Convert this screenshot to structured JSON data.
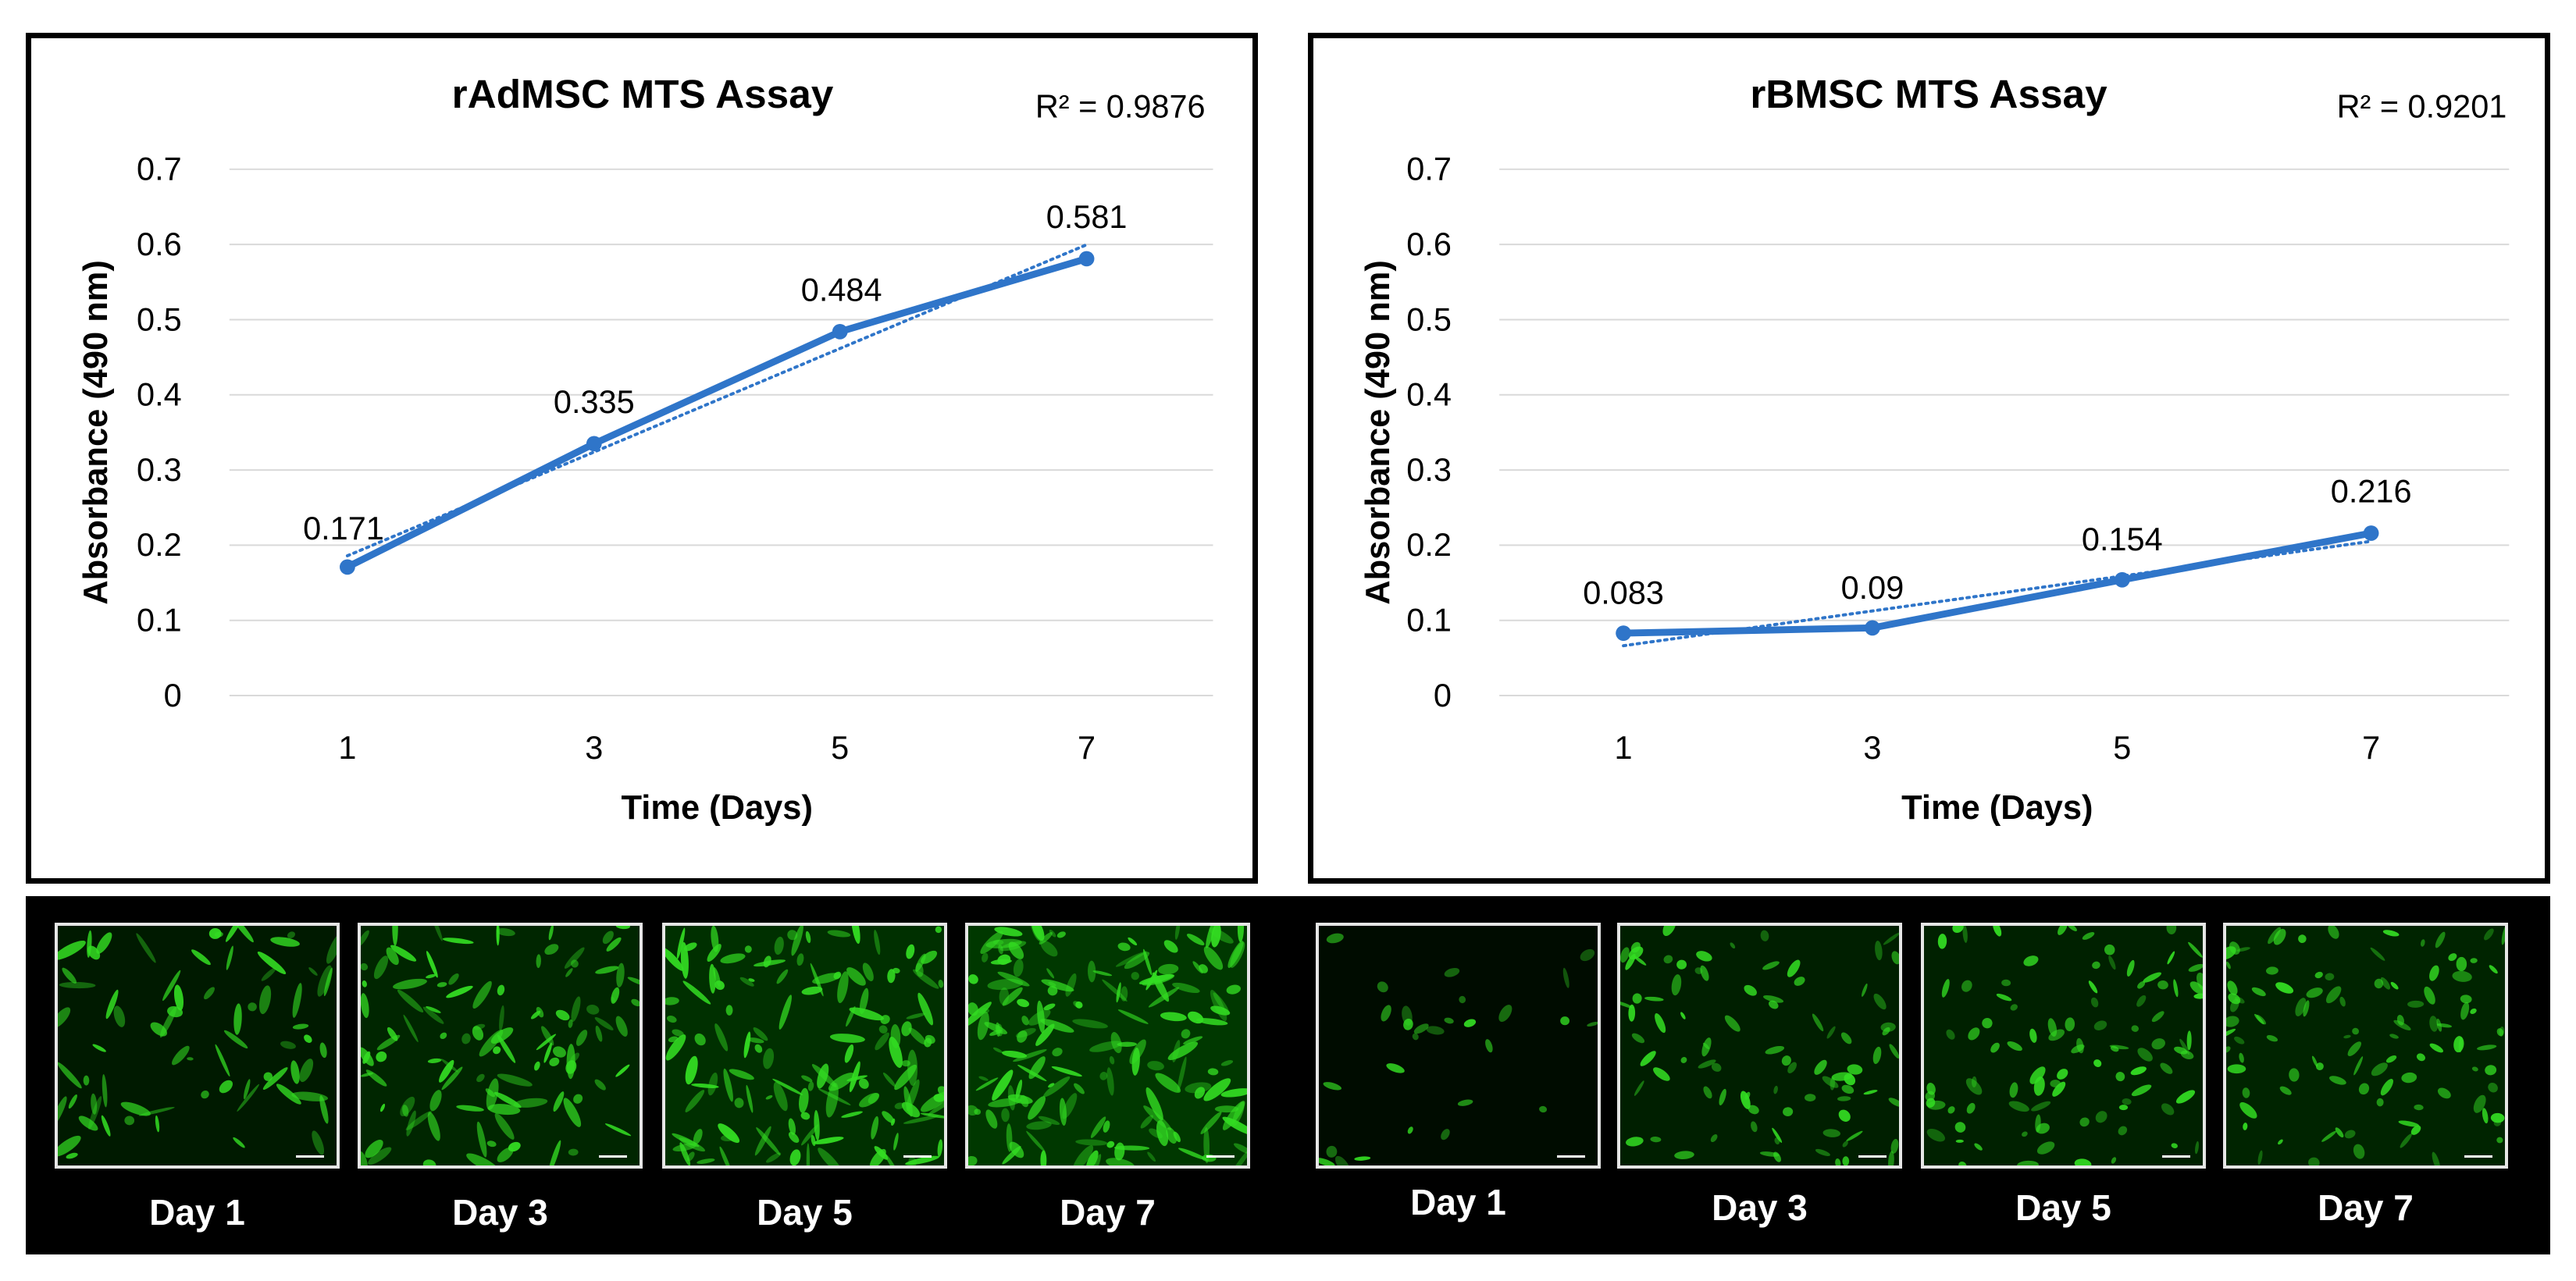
{
  "colors": {
    "series": "#2f75c9",
    "grid": "#d9d9d9",
    "text": "#000000",
    "panel_bg": "#ffffff",
    "strip_bg": "#000000",
    "cells": "#33dd22"
  },
  "chart_data": [
    {
      "type": "line",
      "title": "rAdMSC MTS Assay",
      "r_squared": "R² = 0.9876",
      "xlabel": "Time (Days)",
      "ylabel": "Absorbance (490 nm)",
      "categories": [
        "1",
        "3",
        "5",
        "7"
      ],
      "values": [
        0.171,
        0.335,
        0.484,
        0.581
      ],
      "data_labels": [
        "0.171",
        "0.335",
        "0.484",
        "0.581"
      ],
      "trendline": {
        "type": "linear",
        "style": "dotted"
      },
      "ylim": [
        0,
        0.7
      ],
      "yticks": [
        "0",
        "0.1",
        "0.2",
        "0.3",
        "0.4",
        "0.5",
        "0.6",
        "0.7"
      ],
      "grid": true,
      "legend": "none"
    },
    {
      "type": "line",
      "title": "rBMSC MTS Assay",
      "r_squared": "R² = 0.9201",
      "xlabel": "Time (Days)",
      "ylabel": "Absorbance (490 nm)",
      "categories": [
        "1",
        "3",
        "5",
        "7"
      ],
      "values": [
        0.083,
        0.09,
        0.154,
        0.216
      ],
      "data_labels": [
        "0.083",
        "0.09",
        "0.154",
        "0.216"
      ],
      "trendline": {
        "type": "linear",
        "style": "dotted"
      },
      "ylim": [
        0,
        0.7
      ],
      "yticks": [
        "0",
        "0.1",
        "0.2",
        "0.3",
        "0.4",
        "0.5",
        "0.6",
        "0.7"
      ],
      "grid": true,
      "legend": "none"
    }
  ],
  "micrographs": {
    "left": [
      {
        "label": "Day 1",
        "density": 0.35
      },
      {
        "label": "Day 3",
        "density": 0.6
      },
      {
        "label": "Day 5",
        "density": 0.8
      },
      {
        "label": "Day 7",
        "density": 0.95
      }
    ],
    "right": [
      {
        "label": "Day 1",
        "density": 0.08
      },
      {
        "label": "Day 3",
        "density": 0.45
      },
      {
        "label": "Day 5",
        "density": 0.5
      },
      {
        "label": "Day 7",
        "density": 0.55
      }
    ]
  }
}
